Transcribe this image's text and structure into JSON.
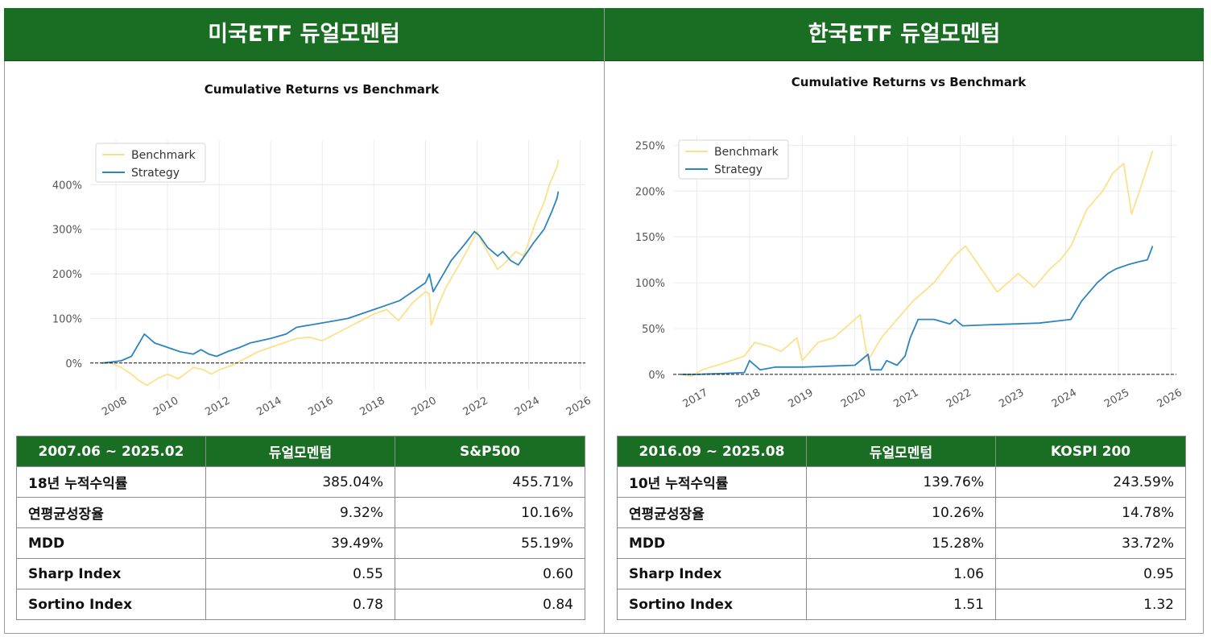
{
  "panels": [
    {
      "title": "미국ETF 듀얼모멘텀",
      "table": {
        "headers": [
          "2007.06 ~ 2025.02",
          "듀얼모멘텀",
          "S&P500"
        ],
        "rows": [
          [
            "18년 누적수익률",
            "385.04%",
            "455.71%"
          ],
          [
            "연평균성장율",
            "9.32%",
            "10.16%"
          ],
          [
            "MDD",
            "39.49%",
            "55.19%"
          ],
          [
            "Sharp Index",
            "0.55",
            "0.60"
          ],
          [
            "Sortino Index",
            "0.78",
            "0.84"
          ]
        ]
      }
    },
    {
      "title": "한국ETF 듀얼모멘텀",
      "table": {
        "headers": [
          "2016.09 ~ 2025.08",
          "듀얼모멘텀",
          "KOSPI 200"
        ],
        "rows": [
          [
            "10년 누적수익률",
            "139.76%",
            "243.59%"
          ],
          [
            "연평균성장율",
            "10.26%",
            "14.78%"
          ],
          [
            "MDD",
            "15.28%",
            "33.72%"
          ],
          [
            "Sharp Index",
            "1.06",
            "0.95"
          ],
          [
            "Sortino Index",
            "1.51",
            "1.32"
          ]
        ]
      }
    }
  ],
  "colors": {
    "benchmark": "#fde08a",
    "strategy": "#2b85bf",
    "header_green": "#1a6e24"
  },
  "chart_data": [
    {
      "type": "line",
      "title": "Cumulative Returns vs Benchmark",
      "xlabel": "",
      "ylabel": "",
      "xlim": [
        2007.0,
        2026.2
      ],
      "ylim": [
        -60,
        500
      ],
      "xticks": [
        2008,
        2010,
        2012,
        2014,
        2016,
        2018,
        2020,
        2022,
        2024,
        2026
      ],
      "xtick_labels": [
        "2008",
        "2010",
        "2012",
        "2014",
        "2016",
        "2018",
        "2020",
        "2022",
        "2024",
        "2026"
      ],
      "yticks": [
        0,
        100,
        200,
        300,
        400
      ],
      "ytick_labels": [
        "0%",
        "100%",
        "200%",
        "300%",
        "400%"
      ],
      "grid": true,
      "legend_position": "top-left",
      "reference_line_y": 0,
      "series": [
        {
          "name": "Benchmark",
          "x": [
            2007.45,
            2007.8,
            2008.2,
            2008.6,
            2008.9,
            2009.2,
            2009.6,
            2010.0,
            2010.4,
            2010.6,
            2011.0,
            2011.4,
            2011.7,
            2012.0,
            2012.5,
            2013.0,
            2013.5,
            2014.0,
            2014.5,
            2015.0,
            2015.5,
            2016.0,
            2016.5,
            2017.0,
            2017.5,
            2018.0,
            2018.5,
            2018.95,
            2019.5,
            2020.0,
            2020.15,
            2020.22,
            2020.5,
            2020.8,
            2021.0,
            2021.5,
            2022.0,
            2022.2,
            2022.5,
            2022.8,
            2023.0,
            2023.5,
            2023.8,
            2024.0,
            2024.3,
            2024.6,
            2024.8,
            2025.1,
            2025.15
          ],
          "values": [
            0,
            0,
            -10,
            -25,
            -40,
            -50,
            -35,
            -25,
            -35,
            -28,
            -10,
            -15,
            -25,
            -15,
            -5,
            10,
            25,
            35,
            45,
            55,
            58,
            50,
            65,
            80,
            95,
            110,
            120,
            95,
            135,
            160,
            155,
            85,
            130,
            170,
            190,
            240,
            295,
            270,
            240,
            210,
            220,
            250,
            240,
            270,
            320,
            360,
            400,
            440,
            456
          ]
        },
        {
          "name": "Strategy",
          "x": [
            2007.45,
            2007.8,
            2008.2,
            2008.6,
            2008.9,
            2009.1,
            2009.5,
            2010.0,
            2010.5,
            2011.0,
            2011.3,
            2011.6,
            2011.9,
            2012.3,
            2012.8,
            2013.2,
            2013.6,
            2014.0,
            2014.6,
            2015.0,
            2015.5,
            2016.0,
            2016.5,
            2017.0,
            2017.5,
            2018.0,
            2018.5,
            2019.0,
            2019.5,
            2020.0,
            2020.15,
            2020.3,
            2020.7,
            2021.0,
            2021.5,
            2021.9,
            2022.1,
            2022.4,
            2022.8,
            2023.0,
            2023.3,
            2023.6,
            2023.9,
            2024.2,
            2024.6,
            2024.9,
            2025.1,
            2025.15
          ],
          "values": [
            0,
            2,
            5,
            15,
            45,
            65,
            45,
            35,
            25,
            20,
            30,
            20,
            15,
            25,
            35,
            45,
            50,
            55,
            65,
            80,
            85,
            90,
            95,
            100,
            110,
            120,
            130,
            140,
            160,
            180,
            200,
            160,
            200,
            230,
            265,
            295,
            285,
            260,
            240,
            250,
            230,
            220,
            245,
            270,
            300,
            340,
            370,
            385
          ]
        }
      ]
    },
    {
      "type": "line",
      "title": "Cumulative Returns vs Benchmark",
      "xlabel": "",
      "ylabel": "",
      "xlim": [
        2016.55,
        2026.1
      ],
      "ylim": [
        -8,
        260
      ],
      "xticks": [
        2017,
        2018,
        2019,
        2020,
        2021,
        2022,
        2023,
        2024,
        2025,
        2026
      ],
      "xtick_labels": [
        "2017",
        "2018",
        "2019",
        "2020",
        "2021",
        "2022",
        "2023",
        "2024",
        "2025",
        "2026"
      ],
      "yticks": [
        0,
        50,
        100,
        150,
        200,
        250
      ],
      "ytick_labels": [
        "0%",
        "50%",
        "100%",
        "150%",
        "200%",
        "250%"
      ],
      "grid": true,
      "legend_position": "top-left",
      "reference_line_y": 0,
      "series": [
        {
          "name": "Benchmark",
          "x": [
            2016.7,
            2016.9,
            2017.1,
            2017.5,
            2017.9,
            2018.1,
            2018.4,
            2018.6,
            2018.9,
            2019.0,
            2019.3,
            2019.6,
            2019.9,
            2020.1,
            2020.2,
            2020.25,
            2020.5,
            2020.8,
            2021.1,
            2021.5,
            2021.9,
            2022.1,
            2022.4,
            2022.7,
            2022.9,
            2023.1,
            2023.4,
            2023.7,
            2023.9,
            2024.1,
            2024.4,
            2024.7,
            2024.9,
            2025.1,
            2025.25,
            2025.4,
            2025.6,
            2025.65
          ],
          "values": [
            0,
            -2,
            5,
            12,
            20,
            35,
            30,
            25,
            40,
            15,
            35,
            40,
            55,
            65,
            30,
            15,
            40,
            60,
            80,
            100,
            130,
            140,
            115,
            90,
            100,
            110,
            95,
            115,
            125,
            140,
            180,
            200,
            220,
            230,
            175,
            200,
            235,
            244
          ]
        },
        {
          "name": "Strategy",
          "x": [
            2016.7,
            2017.0,
            2017.5,
            2017.9,
            2018.0,
            2018.2,
            2018.5,
            2019.0,
            2019.5,
            2020.0,
            2020.25,
            2020.3,
            2020.5,
            2020.6,
            2020.8,
            2020.95,
            2021.05,
            2021.2,
            2021.5,
            2021.8,
            2021.9,
            2022.0,
            2022.05,
            2022.5,
            2023.0,
            2023.5,
            2023.8,
            2024.1,
            2024.3,
            2024.6,
            2024.8,
            2024.95,
            2025.2,
            2025.4,
            2025.55,
            2025.65
          ],
          "values": [
            0,
            0,
            1,
            2,
            15,
            5,
            8,
            8,
            9,
            10,
            22,
            5,
            5,
            15,
            10,
            20,
            40,
            60,
            60,
            55,
            60,
            55,
            53,
            54,
            55,
            56,
            58,
            60,
            80,
            100,
            110,
            115,
            120,
            123,
            125,
            140
          ]
        }
      ]
    }
  ]
}
